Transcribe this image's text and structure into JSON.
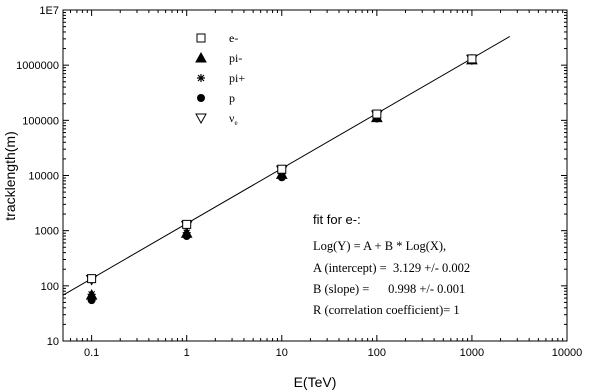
{
  "chart_data": {
    "type": "scatter",
    "xlabel": "E(TeV)",
    "ylabel": "tracklength(m)",
    "xscale": "log",
    "yscale": "log",
    "xlim": [
      0.05,
      10000
    ],
    "ylim": [
      10,
      10000000
    ],
    "x_ticks": [
      {
        "v": 0.1,
        "label": "0.1"
      },
      {
        "v": 1,
        "label": "1"
      },
      {
        "v": 10,
        "label": "10"
      },
      {
        "v": 100,
        "label": "100"
      },
      {
        "v": 1000,
        "label": "1000"
      },
      {
        "v": 10000,
        "label": "10000"
      }
    ],
    "y_ticks": [
      {
        "v": 10,
        "label": "10"
      },
      {
        "v": 100,
        "label": "100"
      },
      {
        "v": 1000,
        "label": "1000"
      },
      {
        "v": 10000,
        "label": "10000"
      },
      {
        "v": 100000,
        "label": "100000"
      },
      {
        "v": 1000000,
        "label": "1000000"
      },
      {
        "v": 10000000,
        "label": "1E7"
      }
    ],
    "grid": false,
    "legend_position": "top-left",
    "series": [
      {
        "name": "e-",
        "marker": "open-square",
        "x": [
          0.1,
          1,
          10,
          100,
          1000
        ],
        "y": [
          135,
          1300,
          13000,
          130000,
          1300000
        ]
      },
      {
        "name": "pi-",
        "marker": "filled-triangle",
        "x": [
          0.1,
          1,
          10,
          100,
          1000
        ],
        "y": [
          68,
          900,
          10500,
          112000,
          1250000
        ]
      },
      {
        "name": "pi+",
        "marker": "asterisk",
        "x": [
          0.1,
          1,
          10,
          100,
          1000
        ],
        "y": [
          70,
          920,
          10800,
          113000,
          1260000
        ]
      },
      {
        "name": "p",
        "marker": "filled-circle",
        "x": [
          0.1,
          1,
          10,
          100,
          1000
        ],
        "y": [
          55,
          800,
          9300,
          108000,
          1230000
        ]
      },
      {
        "name": "ν",
        "name_subscript": "e",
        "marker": "open-triangle-down",
        "x": [
          0.1,
          1,
          10,
          100,
          1000
        ],
        "y": [
          130,
          1250,
          12500,
          125000,
          1280000
        ]
      }
    ],
    "fit_line": {
      "A": 3.129,
      "B": 0.998,
      "x_range": [
        0.05,
        2500
      ]
    },
    "annotation": {
      "title": "fit for e-:",
      "lines": [
        "Log(Y) = A + B * Log(X),",
        "A (intercept) =  3.129 +/- 0.002",
        "B (slope) =      0.998 +/- 0.001",
        "R (correlation coefficient)= 1"
      ]
    }
  }
}
